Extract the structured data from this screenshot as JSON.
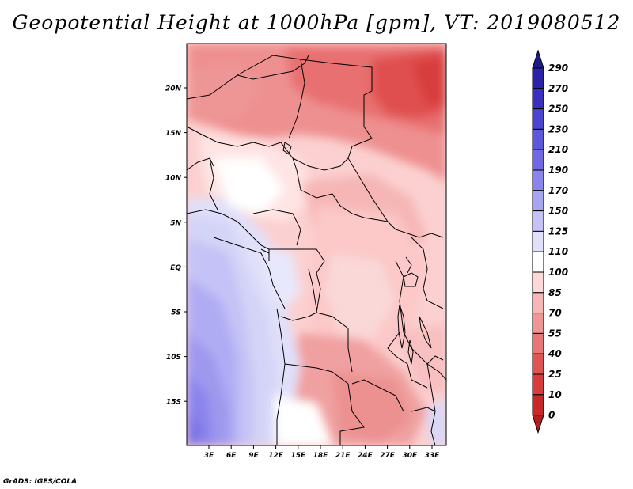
{
  "title": "Geopotential Height at 1000hPa [gpm], VT: 2019080512",
  "credit": "GrADS: IGES/COLA",
  "map": {
    "lon_labels": [
      "3E",
      "6E",
      "9E",
      "12E",
      "15E",
      "18E",
      "21E",
      "24E",
      "27E",
      "30E",
      "33E"
    ],
    "lat_labels": [
      "20N",
      "15N",
      "10N",
      "5N",
      "EQ",
      "5S",
      "10S",
      "15S"
    ]
  },
  "colorbar": {
    "labels": [
      "290",
      "270",
      "250",
      "230",
      "210",
      "190",
      "170",
      "150",
      "125",
      "110",
      "100",
      "85",
      "70",
      "55",
      "40",
      "25",
      "10",
      "0"
    ],
    "colors": [
      "#1e1a8c",
      "#2a22a8",
      "#3a30c0",
      "#4a44d0",
      "#5c58dc",
      "#7068e4",
      "#8a84ec",
      "#a8a4f2",
      "#c4c2f6",
      "#e0e0fa",
      "#ffffff",
      "#fcd8d8",
      "#f6b6b6",
      "#ee9696",
      "#e87676",
      "#e05454",
      "#d83c3c",
      "#c82828",
      "#b41e1e"
    ]
  }
}
